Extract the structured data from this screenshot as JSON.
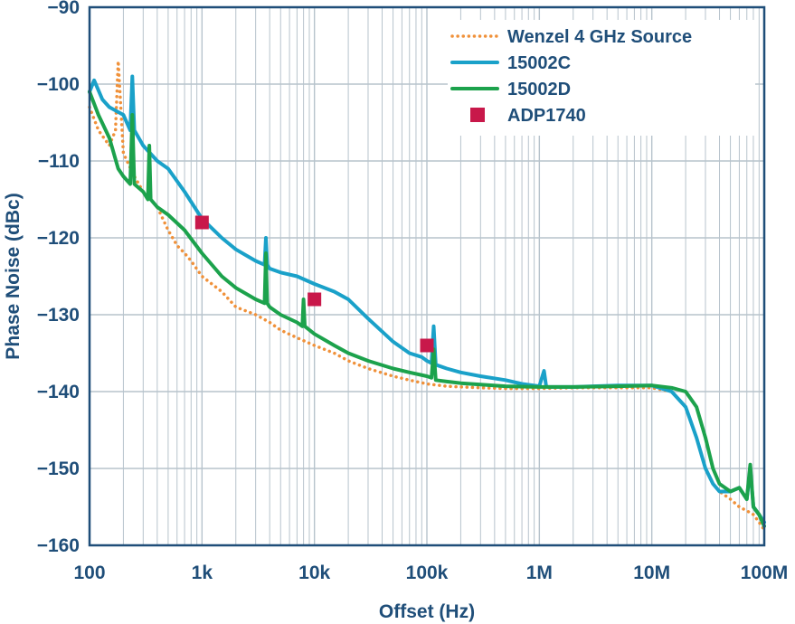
{
  "chart_data": {
    "type": "line",
    "xscale": "log",
    "xlim": [
      100,
      100000000
    ],
    "ylim": [
      -160,
      -90
    ],
    "xlabel": "Offset (Hz)",
    "ylabel": "Phase Noise (dBc)",
    "grid": true,
    "legend_position": "top-right",
    "x_ticks": [
      {
        "value": 100,
        "label": "100"
      },
      {
        "value": 1000,
        "label": "1k"
      },
      {
        "value": 10000,
        "label": "10k"
      },
      {
        "value": 100000,
        "label": "100k"
      },
      {
        "value": 1000000,
        "label": "1M"
      },
      {
        "value": 10000000,
        "label": "10M"
      },
      {
        "value": 100000000,
        "label": "100M"
      }
    ],
    "y_ticks": [
      {
        "value": -90,
        "label": "−90"
      },
      {
        "value": -100,
        "label": "−100"
      },
      {
        "value": -110,
        "label": "−110"
      },
      {
        "value": -120,
        "label": "−120"
      },
      {
        "value": -130,
        "label": "−130"
      },
      {
        "value": -140,
        "label": "−140"
      },
      {
        "value": -150,
        "label": "−150"
      },
      {
        "value": -160,
        "label": "−160"
      }
    ],
    "series": [
      {
        "name": "Wenzel 4 GHz Source",
        "color": "#f0913a",
        "style": "dotted",
        "x": [
          100,
          120,
          150,
          170,
          180,
          200,
          250,
          300,
          350,
          400,
          500,
          600,
          700,
          800,
          1000,
          1500,
          2000,
          3000,
          4000,
          5000,
          7000,
          10000,
          15000,
          20000,
          30000,
          50000,
          70000,
          100000,
          150000,
          200000,
          300000,
          500000,
          1000000,
          2000000,
          5000000,
          10000000,
          15000000,
          20000000,
          25000000,
          30000000,
          35000000,
          40000000,
          50000000,
          60000000,
          70000000,
          80000000,
          90000000,
          100000000
        ],
        "y": [
          -103,
          -106,
          -108,
          -106,
          -97,
          -109,
          -112,
          -114,
          -115,
          -116,
          -119,
          -121,
          -122,
          -123,
          -125,
          -127,
          -129,
          -130,
          -131,
          -132,
          -133,
          -134,
          -135,
          -136,
          -137,
          -138,
          -138.5,
          -139,
          -139.3,
          -139.4,
          -139.5,
          -139.6,
          -139.6,
          -139.5,
          -139.5,
          -139.5,
          -140,
          -142,
          -146,
          -150,
          -152,
          -153,
          -154,
          -155,
          -155.5,
          -156,
          -157,
          -158
        ]
      },
      {
        "name": "15002C",
        "color": "#1aa1c9",
        "style": "solid",
        "x": [
          100,
          110,
          130,
          150,
          200,
          230,
          240,
          250,
          300,
          400,
          500,
          700,
          1000,
          1500,
          2000,
          3000,
          3600,
          3700,
          3800,
          4000,
          5000,
          7000,
          10000,
          15000,
          20000,
          30000,
          50000,
          70000,
          90000,
          100000,
          110000,
          115000,
          120000,
          150000,
          200000,
          300000,
          500000,
          700000,
          1000000,
          1100000,
          1150000,
          1200000,
          1500000,
          2000000,
          3000000,
          5000000,
          10000000,
          15000000,
          20000000,
          25000000,
          30000000,
          35000000,
          40000000,
          50000000,
          60000000,
          70000000,
          75000000,
          80000000,
          90000000,
          100000000
        ],
        "y": [
          -101,
          -99.5,
          -102,
          -103,
          -104,
          -106,
          -99,
          -106,
          -108,
          -110,
          -111,
          -114,
          -117.5,
          -120,
          -121.5,
          -123,
          -123.5,
          -120,
          -123.5,
          -124,
          -124.5,
          -125,
          -126,
          -127,
          -128,
          -130.5,
          -133.5,
          -135,
          -135.5,
          -136,
          -136.3,
          -131.5,
          -136.5,
          -137,
          -137.5,
          -138,
          -138.5,
          -139,
          -139.3,
          -137.3,
          -139.3,
          -139.4,
          -139.4,
          -139.4,
          -139.3,
          -139.2,
          -139.2,
          -140,
          -142,
          -146,
          -150,
          -152,
          -153,
          -153,
          -152.5,
          -154,
          -150,
          -155,
          -156,
          -157
        ]
      },
      {
        "name": "15002D",
        "color": "#1ca24c",
        "style": "solid",
        "x": [
          100,
          120,
          150,
          180,
          200,
          230,
          240,
          250,
          300,
          330,
          340,
          350,
          400,
          500,
          700,
          1000,
          1500,
          2000,
          3000,
          3600,
          3700,
          3800,
          4000,
          5000,
          7000,
          7800,
          8000,
          8200,
          10000,
          15000,
          20000,
          30000,
          50000,
          70000,
          100000,
          110000,
          115000,
          120000,
          150000,
          200000,
          300000,
          500000,
          1000000,
          2000000,
          5000000,
          10000000,
          15000000,
          20000000,
          25000000,
          30000000,
          35000000,
          40000000,
          50000000,
          60000000,
          70000000,
          75000000,
          80000000,
          90000000,
          100000000
        ],
        "y": [
          -101,
          -104,
          -107,
          -111,
          -112,
          -113,
          -104,
          -113,
          -114,
          -115,
          -108,
          -115,
          -116,
          -117,
          -119,
          -122,
          -125,
          -126.5,
          -128,
          -128.5,
          -122,
          -128.5,
          -129,
          -130,
          -131,
          -131.5,
          -128,
          -131.5,
          -132.5,
          -134,
          -135,
          -136,
          -137,
          -137.5,
          -138,
          -138.2,
          -134.5,
          -138.5,
          -138.7,
          -138.9,
          -139.1,
          -139.3,
          -139.4,
          -139.4,
          -139.3,
          -139.2,
          -139.5,
          -140,
          -142,
          -146,
          -150,
          -152,
          -153,
          -152.5,
          -154,
          -149.5,
          -155,
          -156,
          -157.5
        ]
      },
      {
        "name": "ADP1740",
        "color": "#c8184a",
        "style": "marker",
        "x": [
          1000,
          10000,
          100000
        ],
        "y": [
          -118,
          -128,
          -134
        ]
      }
    ]
  }
}
